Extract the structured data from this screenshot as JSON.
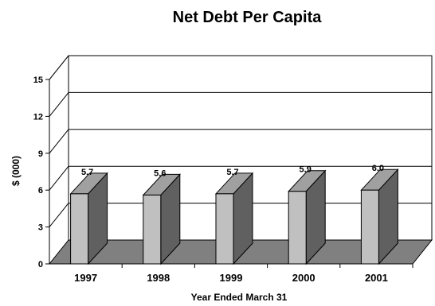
{
  "chart_data": {
    "type": "bar",
    "title": "Net Debt Per Capita",
    "xlabel": "Year Ended March 31",
    "ylabel": "$ (000)",
    "categories": [
      "1997",
      "1998",
      "1999",
      "2000",
      "2001"
    ],
    "values": [
      5.7,
      5.6,
      5.7,
      5.9,
      6.0
    ],
    "data_labels": [
      "5.7",
      "5.6",
      "5.7",
      "5.9",
      "6.0"
    ],
    "ylim": [
      0,
      15
    ],
    "yticks": [
      0,
      3,
      6,
      9,
      12,
      15
    ],
    "ytick_labels": [
      "0",
      "3",
      "6",
      "9",
      "12",
      "15"
    ],
    "grid": true,
    "style": "3d",
    "colors": {
      "bar_front": "#c0c0c0",
      "bar_side": "#606060",
      "bar_top": "#a0a0a0",
      "floor": "#808080",
      "wall": "#ffffff",
      "line": "#000000"
    }
  }
}
